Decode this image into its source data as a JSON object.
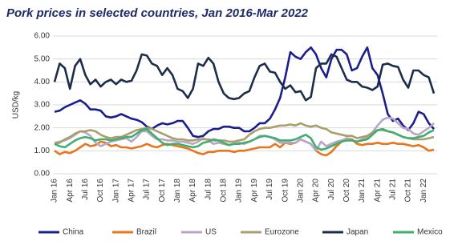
{
  "chart_data": {
    "type": "line",
    "title": "Pork prices in selected countries, Jan 2016-Mar 2022",
    "y_label": "USD/kg",
    "categories": [
      "Jan 16",
      null,
      null,
      "Apr 16",
      null,
      null,
      "Jul 16",
      null,
      null,
      "Oct 16",
      null,
      null,
      "Jan 17",
      null,
      null,
      "Apr 17",
      null,
      null,
      "Jul 17",
      null,
      null,
      "Oct 17",
      null,
      null,
      "Jan 18",
      null,
      null,
      "Apr 18",
      null,
      null,
      "Jul 18",
      null,
      null,
      "Oct 18",
      null,
      null,
      "Jan 19",
      null,
      null,
      "Apr 19",
      null,
      null,
      "Jul 19",
      null,
      null,
      "Oct 19",
      null,
      null,
      "Jan 20",
      null,
      null,
      "Apr 20",
      null,
      null,
      "Jul 20",
      null,
      null,
      "Oct 20",
      null,
      null,
      "Jan 21",
      null,
      null,
      "Apr 21",
      null,
      null,
      "Jul 21",
      null,
      null,
      "Oct 21",
      null,
      null,
      "Jan 22",
      null,
      null
    ],
    "series": [
      {
        "name": "China",
        "color": "#1b1f8c",
        "values": [
          2.7,
          2.75,
          2.9,
          3.0,
          3.1,
          3.2,
          3.05,
          2.8,
          2.8,
          2.75,
          2.5,
          2.45,
          2.5,
          2.6,
          2.5,
          2.4,
          2.35,
          2.25,
          2.05,
          1.95,
          2.1,
          2.2,
          2.15,
          2.2,
          2.3,
          2.3,
          2.0,
          1.65,
          1.6,
          1.65,
          1.85,
          1.95,
          1.95,
          2.05,
          2.05,
          2.0,
          2.0,
          1.85,
          1.85,
          2.0,
          2.2,
          2.2,
          2.4,
          2.8,
          3.3,
          4.2,
          5.3,
          5.1,
          5.0,
          5.3,
          5.5,
          5.2,
          4.6,
          4.2,
          5.0,
          5.4,
          5.4,
          5.2,
          4.5,
          4.6,
          5.1,
          5.5,
          4.6,
          4.3,
          3.5,
          2.6,
          2.3,
          2.4,
          2.1,
          1.9,
          2.2,
          2.7,
          2.6,
          2.2,
          1.95
        ]
      },
      {
        "name": "Brazil",
        "color": "#e8761e",
        "values": [
          1.0,
          0.85,
          0.95,
          0.9,
          1.0,
          1.15,
          1.3,
          1.2,
          1.25,
          1.4,
          1.35,
          1.2,
          1.25,
          1.15,
          1.15,
          1.1,
          1.15,
          1.2,
          1.3,
          1.2,
          1.15,
          1.25,
          1.3,
          1.25,
          1.2,
          1.15,
          1.1,
          1.0,
          0.9,
          0.85,
          0.95,
          0.95,
          1.0,
          1.0,
          1.0,
          0.95,
          1.0,
          1.0,
          1.05,
          1.1,
          1.15,
          1.15,
          1.15,
          1.3,
          1.15,
          1.35,
          1.3,
          1.35,
          1.5,
          1.4,
          1.3,
          1.0,
          0.85,
          0.8,
          0.95,
          1.2,
          1.4,
          1.55,
          1.5,
          1.3,
          1.25,
          1.3,
          1.3,
          1.35,
          1.3,
          1.3,
          1.35,
          1.3,
          1.3,
          1.25,
          1.2,
          1.25,
          1.15,
          1.0,
          1.05
        ]
      },
      {
        "name": "US",
        "color": "#b8a6c6",
        "values": [
          1.35,
          1.4,
          1.45,
          1.55,
          1.7,
          1.85,
          1.8,
          1.65,
          1.35,
          1.2,
          1.3,
          1.4,
          1.45,
          1.5,
          1.55,
          1.4,
          1.6,
          1.85,
          1.85,
          1.65,
          1.5,
          1.5,
          1.45,
          1.45,
          1.4,
          1.4,
          1.35,
          1.3,
          1.4,
          1.55,
          1.45,
          1.3,
          1.35,
          1.3,
          1.25,
          1.3,
          1.35,
          1.3,
          1.4,
          1.5,
          1.65,
          1.65,
          1.6,
          1.5,
          1.35,
          1.35,
          1.35,
          1.35,
          1.5,
          1.4,
          1.3,
          1.0,
          1.4,
          1.2,
          1.3,
          1.4,
          1.45,
          1.55,
          1.45,
          1.4,
          1.5,
          1.6,
          1.8,
          2.1,
          2.35,
          2.45,
          2.4,
          2.2,
          2.0,
          1.95,
          1.75,
          1.7,
          1.85,
          2.0,
          2.2
        ]
      },
      {
        "name": "Eurozone",
        "color": "#a89f6c",
        "values": [
          1.3,
          1.35,
          1.5,
          1.6,
          1.75,
          1.85,
          1.85,
          1.9,
          1.85,
          1.7,
          1.6,
          1.55,
          1.6,
          1.6,
          1.7,
          1.8,
          1.9,
          1.95,
          2.0,
          1.95,
          1.85,
          1.75,
          1.65,
          1.55,
          1.5,
          1.5,
          1.45,
          1.45,
          1.5,
          1.5,
          1.5,
          1.45,
          1.45,
          1.45,
          1.4,
          1.4,
          1.45,
          1.5,
          1.7,
          1.85,
          1.95,
          2.0,
          2.0,
          2.05,
          2.1,
          2.1,
          2.15,
          2.1,
          2.2,
          2.1,
          2.05,
          2.1,
          2.0,
          1.95,
          1.8,
          1.75,
          1.7,
          1.65,
          1.65,
          1.55,
          1.6,
          1.65,
          1.8,
          1.9,
          1.9,
          1.85,
          1.8,
          1.7,
          1.6,
          1.55,
          1.5,
          1.5,
          1.5,
          1.55,
          1.6
        ]
      },
      {
        "name": "Japan",
        "color": "#1c2d4c",
        "values": [
          4.0,
          4.8,
          4.6,
          3.7,
          4.7,
          5.0,
          4.3,
          3.9,
          4.1,
          3.8,
          4.0,
          4.1,
          3.9,
          4.1,
          4.0,
          4.05,
          4.5,
          5.2,
          5.15,
          4.8,
          4.7,
          4.3,
          4.6,
          4.3,
          3.7,
          3.6,
          3.3,
          3.7,
          4.8,
          4.7,
          5.05,
          4.8,
          4.0,
          3.5,
          3.3,
          3.25,
          3.3,
          3.5,
          3.6,
          4.2,
          4.7,
          4.8,
          4.45,
          4.4,
          4.0,
          3.7,
          3.85,
          3.55,
          3.6,
          3.2,
          3.35,
          4.6,
          4.8,
          4.8,
          5.2,
          5.1,
          4.6,
          4.1,
          4.0,
          4.0,
          3.8,
          3.75,
          3.65,
          3.8,
          4.75,
          4.8,
          4.7,
          4.65,
          4.1,
          3.75,
          4.5,
          4.5,
          4.3,
          4.2,
          3.5
        ]
      },
      {
        "name": "Mexico",
        "color": "#3fae6f",
        "values": [
          1.3,
          1.2,
          1.15,
          1.3,
          1.45,
          1.55,
          1.6,
          1.55,
          1.45,
          1.5,
          1.5,
          1.45,
          1.5,
          1.55,
          1.6,
          1.6,
          1.75,
          1.9,
          1.95,
          1.75,
          1.55,
          1.35,
          1.25,
          1.3,
          1.3,
          1.25,
          1.2,
          1.15,
          1.2,
          1.35,
          1.4,
          1.5,
          1.45,
          1.35,
          1.25,
          1.3,
          1.3,
          1.35,
          1.4,
          1.5,
          1.6,
          1.65,
          1.6,
          1.55,
          1.45,
          1.45,
          1.45,
          1.5,
          1.6,
          1.7,
          1.55,
          1.15,
          1.05,
          1.1,
          1.2,
          1.3,
          1.4,
          1.45,
          1.45,
          1.4,
          1.45,
          1.5,
          1.7,
          1.9,
          1.95,
          1.85,
          1.8,
          1.7,
          1.6,
          1.55,
          1.55,
          1.6,
          1.65,
          1.8,
          1.9
        ]
      }
    ],
    "ylim": [
      0,
      6
    ],
    "yticks": [
      {
        "value": 0,
        "label": "0.00"
      },
      {
        "value": 1,
        "label": "1.00"
      },
      {
        "value": 2,
        "label": "2.00"
      },
      {
        "value": 3,
        "label": "3.00"
      },
      {
        "value": 4,
        "label": "4.00"
      },
      {
        "value": 5,
        "label": "5.00"
      },
      {
        "value": 6,
        "label": "6.00"
      }
    ],
    "grid": true,
    "legend": "bottom"
  }
}
